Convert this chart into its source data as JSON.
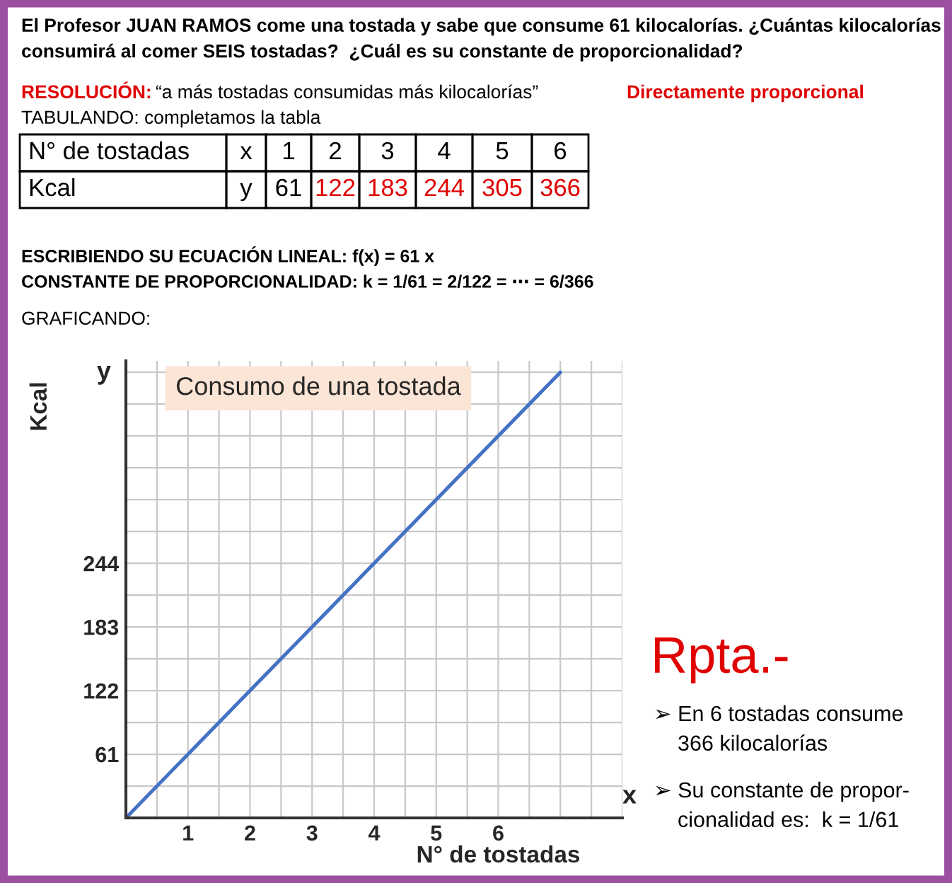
{
  "chart_data": {
    "type": "line",
    "title": "Consumo de una tostada",
    "xlabel": "N° de tostadas",
    "ylabel": "Kcal",
    "x": [
      0,
      7
    ],
    "series": [
      {
        "color": "#4472c4",
        "values": [
          0,
          427
        ]
      }
    ],
    "xlim": [
      0,
      8
    ],
    "ylim": [
      0,
      438
    ],
    "xticks": [
      1,
      2,
      3,
      4,
      5,
      6
    ],
    "yticks": [
      61,
      122,
      183,
      244
    ],
    "grid": true,
    "marker": "none",
    "line_style": "solid",
    "annotations": [
      "El Profesor JUAN RAMOS come una tostada y sabe que consume 61 kilocalorías. ¿Cuántas kilocalorías\nconsumirá al comer SEIS tostadas?  ¿Cuál es su constante de proporcionalidad?",
      "RESOLUCIÓN:",
      "“a más tostadas consumidas más kilocalorías”",
      "Directamente proporcional",
      "TABULANDO: completamos la tabla",
      "N° de tostadas",
      "x",
      "1",
      "2",
      "3",
      "4",
      "5",
      "6",
      "Kcal",
      "y",
      "61",
      "122",
      "183",
      "244",
      "305",
      "366",
      "ESCRIBIENDO SU ECUACIÓN LINEAL: f(x) = 61 x",
      "CONSTANTE DE PROPORCIONALIDAD: k = 1/61 = 2/122 = ⋯ = 6/366",
      "GRAFICANDO:",
      "Rpta.-",
      "➢ En 6 tostadas consume\n    366 kilocalorías",
      "➢ Su constante de propor-\n    cionalidad es:  k = 1/61",
      "x",
      "y"
    ]
  }
}
